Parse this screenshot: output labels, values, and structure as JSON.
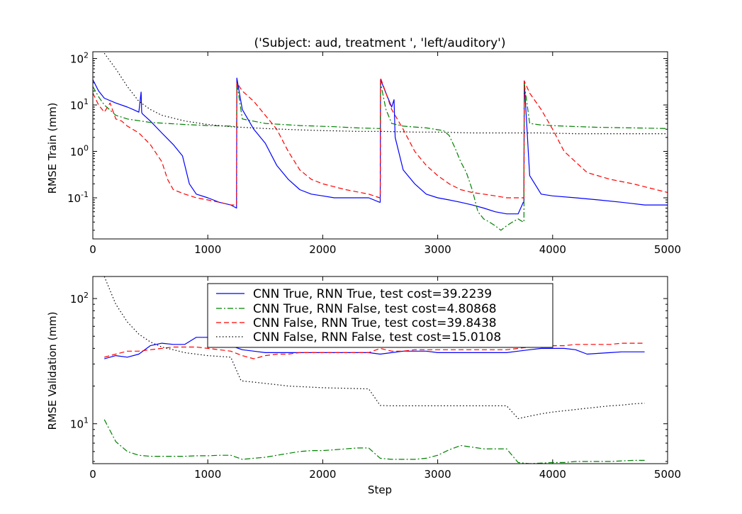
{
  "chart_data": [
    {
      "type": "line",
      "title": "('Subject: aud, treatment ', 'left/auditory')",
      "xlabel": "",
      "ylabel": "RMSE Train (mm)",
      "xlim": [
        0,
        5000
      ],
      "ylim": [
        0.013,
        140
      ],
      "yscale": "log",
      "xticks": [
        "0",
        "1000",
        "2000",
        "3000",
        "4000",
        "5000"
      ],
      "yticks": [
        {
          "value": 100,
          "base": "10",
          "exp": "2"
        },
        {
          "value": 10,
          "base": "10",
          "exp": "1"
        },
        {
          "value": 1,
          "base": "10",
          "exp": "0"
        },
        {
          "value": 0.1,
          "base": "10",
          "exp": "-1"
        }
      ],
      "grid": false,
      "series": [
        {
          "name": "CNN True, RNN True",
          "color": "#0000ff",
          "style": "solid",
          "x": [
            0,
            50,
            100,
            200,
            300,
            350,
            400,
            420,
            425,
            430,
            500,
            600,
            700,
            780,
            840,
            900,
            1000,
            1100,
            1200,
            1250,
            1253,
            1300,
            1400,
            1500,
            1600,
            1700,
            1800,
            1900,
            2000,
            2100,
            2200,
            2300,
            2400,
            2495,
            2500,
            2503,
            2550,
            2600,
            2620,
            2630,
            2700,
            2800,
            2900,
            3000,
            3100,
            3200,
            3300,
            3400,
            3500,
            3600,
            3700,
            3745,
            3750,
            3753,
            3800,
            3900,
            4000,
            4200,
            4400,
            4600,
            4800,
            5000
          ],
          "y": [
            35,
            20,
            14,
            11,
            9,
            8,
            7,
            19,
            7,
            6.5,
            4.5,
            2.5,
            1.4,
            0.8,
            0.2,
            0.12,
            0.1,
            0.08,
            0.07,
            0.06,
            38,
            8,
            3,
            1.5,
            0.5,
            0.25,
            0.15,
            0.12,
            0.11,
            0.1,
            0.1,
            0.1,
            0.1,
            0.08,
            0.08,
            35,
            18,
            9,
            13,
            2,
            0.4,
            0.2,
            0.12,
            0.1,
            0.09,
            0.08,
            0.07,
            0.06,
            0.05,
            0.045,
            0.045,
            0.08,
            0.08,
            33,
            0.3,
            0.12,
            0.11,
            0.1,
            0.09,
            0.08,
            0.07,
            0.07
          ]
        },
        {
          "name": "CNN True, RNN False",
          "color": "#008000",
          "style": "dashdot",
          "x": [
            0,
            50,
            100,
            200,
            300,
            500,
            800,
            1000,
            1200,
            1245,
            1250,
            1253,
            1300,
            1500,
            1800,
            2100,
            2300,
            2495,
            2500,
            2503,
            2550,
            2600,
            2700,
            2900,
            3050,
            3100,
            3150,
            3200,
            3250,
            3300,
            3350,
            3400,
            3450,
            3500,
            3550,
            3600,
            3650,
            3700,
            3745,
            3750,
            3753,
            3800,
            3900,
            4100,
            4400,
            4700,
            5000
          ],
          "y": [
            25,
            15,
            10,
            6,
            5,
            4.2,
            3.8,
            3.6,
            3.5,
            3.4,
            3.4,
            30,
            5,
            4,
            3.6,
            3.4,
            3.2,
            3.1,
            3.1,
            30,
            8,
            4,
            3.5,
            3.2,
            2.8,
            2.2,
            1.2,
            0.6,
            0.35,
            0.15,
            0.05,
            0.035,
            0.03,
            0.025,
            0.02,
            0.025,
            0.03,
            0.035,
            0.03,
            0.03,
            30,
            4,
            3.7,
            3.5,
            3.3,
            3.2,
            3.1
          ]
        },
        {
          "name": "CNN False, RNN True",
          "color": "#ff0000",
          "style": "dashed",
          "x": [
            0,
            50,
            100,
            150,
            200,
            250,
            300,
            400,
            500,
            600,
            650,
            700,
            800,
            900,
            1000,
            1100,
            1200,
            1245,
            1250,
            1253,
            1300,
            1400,
            1500,
            1600,
            1700,
            1800,
            1900,
            2000,
            2200,
            2400,
            2495,
            2500,
            2503,
            2550,
            2600,
            2700,
            2800,
            2900,
            3000,
            3100,
            3200,
            3300,
            3400,
            3500,
            3600,
            3700,
            3745,
            3750,
            3753,
            3800,
            3900,
            4000,
            4100,
            4300,
            4500,
            4700,
            4900,
            5000
          ],
          "y": [
            18,
            10,
            7,
            11,
            5,
            4.5,
            3.5,
            2.5,
            1.4,
            0.6,
            0.25,
            0.15,
            0.12,
            0.1,
            0.09,
            0.08,
            0.07,
            0.07,
            0.07,
            30,
            20,
            12,
            6,
            3,
            1,
            0.4,
            0.25,
            0.2,
            0.15,
            0.12,
            0.1,
            0.1,
            38,
            18,
            8,
            3,
            1,
            0.5,
            0.3,
            0.2,
            0.15,
            0.13,
            0.12,
            0.11,
            0.1,
            0.1,
            0.1,
            0.1,
            33,
            18,
            8,
            3,
            1,
            0.35,
            0.25,
            0.2,
            0.15,
            0.13
          ]
        },
        {
          "name": "CNN False, RNN False",
          "color": "#000000",
          "style": "dotted",
          "x": [
            100,
            200,
            300,
            400,
            500,
            600,
            800,
            1000,
            1200,
            1500,
            1800,
            2000,
            2300,
            2500,
            2800,
            3000,
            3300,
            3500,
            3700,
            3900,
            4200,
            4500,
            4800,
            5000
          ],
          "y": [
            130,
            60,
            25,
            12,
            8,
            6,
            4.5,
            3.8,
            3.4,
            3.1,
            2.9,
            2.8,
            2.7,
            2.7,
            2.6,
            2.6,
            2.5,
            2.5,
            2.5,
            2.5,
            2.4,
            2.4,
            2.4,
            2.4
          ]
        }
      ]
    },
    {
      "type": "line",
      "title": "",
      "xlabel": "Step",
      "ylabel": "RMSE Validation (mm)",
      "xlim": [
        0,
        5000
      ],
      "ylim": [
        4.8,
        150
      ],
      "yscale": "log",
      "xticks": [
        "0",
        "1000",
        "2000",
        "3000",
        "4000",
        "5000"
      ],
      "yticks": [
        {
          "value": 100,
          "base": "10",
          "exp": "2"
        },
        {
          "value": 10,
          "base": "10",
          "exp": "1"
        }
      ],
      "grid": false,
      "legend": {
        "position": "upper-center",
        "entries": [
          "CNN True, RNN True, test cost=39.2239",
          "CNN True, RNN False, test cost=4.80868",
          "CNN False, RNN True, test cost=39.8438",
          "CNN False, RNN False, test cost=15.0108"
        ]
      },
      "series": [
        {
          "name": "CNN True, RNN True",
          "color": "#0000ff",
          "style": "solid",
          "x": [
            100,
            200,
            300,
            400,
            500,
            600,
            700,
            800,
            900,
            1000,
            1100,
            1200,
            1300,
            1400,
            1500,
            1600,
            1700,
            1800,
            1900,
            2000,
            2100,
            2200,
            2300,
            2400,
            2500,
            2600,
            2700,
            2800,
            2900,
            3000,
            3100,
            3200,
            3300,
            3400,
            3500,
            3600,
            3700,
            3800,
            3900,
            4000,
            4100,
            4200,
            4300,
            4400,
            4500,
            4600,
            4700,
            4800
          ],
          "y": [
            33,
            35,
            34,
            36,
            42,
            44,
            43,
            43,
            49,
            49,
            45,
            42,
            39,
            38,
            37,
            37,
            37,
            37,
            37,
            37,
            37,
            37,
            37,
            37,
            36,
            37,
            38,
            38,
            38,
            37,
            37,
            37,
            37,
            37,
            37,
            37,
            38,
            39,
            40,
            40,
            40,
            39,
            36,
            36.5,
            37,
            37.5,
            37.5,
            37.5
          ]
        },
        {
          "name": "CNN True, RNN False",
          "color": "#008000",
          "style": "dashdot",
          "x": [
            100,
            200,
            300,
            400,
            500,
            600,
            700,
            800,
            900,
            1000,
            1100,
            1200,
            1300,
            1400,
            1500,
            1600,
            1700,
            1800,
            1900,
            2000,
            2100,
            2200,
            2300,
            2400,
            2500,
            2600,
            2700,
            2800,
            2900,
            3000,
            3100,
            3200,
            3300,
            3400,
            3500,
            3600,
            3700,
            3800,
            3900,
            4000,
            4100,
            4200,
            4300,
            4400,
            4500,
            4600,
            4700,
            4800
          ],
          "y": [
            10.8,
            7.2,
            6.0,
            5.6,
            5.5,
            5.5,
            5.5,
            5.5,
            5.55,
            5.55,
            5.6,
            5.6,
            5.2,
            5.3,
            5.4,
            5.6,
            5.8,
            6.0,
            6.1,
            6.1,
            6.2,
            6.3,
            6.4,
            6.4,
            5.3,
            5.2,
            5.2,
            5.2,
            5.3,
            5.6,
            6.2,
            6.7,
            6.5,
            6.3,
            6.3,
            6.3,
            4.9,
            4.8,
            4.85,
            4.9,
            4.9,
            5.0,
            5.0,
            5.0,
            5.0,
            5.05,
            5.1,
            5.1
          ]
        },
        {
          "name": "CNN False, RNN True",
          "color": "#ff0000",
          "style": "dashed",
          "x": [
            100,
            200,
            300,
            400,
            500,
            600,
            700,
            800,
            900,
            1000,
            1100,
            1200,
            1300,
            1400,
            1500,
            1600,
            1700,
            1800,
            1900,
            2000,
            2100,
            2200,
            2300,
            2400,
            2500,
            2600,
            2700,
            2800,
            2900,
            3000,
            3100,
            3200,
            3300,
            3400,
            3500,
            3600,
            3700,
            3800,
            3900,
            4000,
            4100,
            4200,
            4300,
            4400,
            4500,
            4600,
            4700,
            4800
          ],
          "y": [
            34,
            36,
            38,
            38,
            39,
            40,
            41,
            41,
            41,
            40,
            39,
            38,
            35,
            33,
            35,
            36,
            36,
            37,
            37,
            37,
            37,
            37,
            37,
            37,
            40,
            38,
            38,
            39,
            39,
            39,
            39,
            39,
            39,
            39,
            39,
            39,
            40,
            41,
            42,
            42,
            42,
            43,
            43,
            43,
            43,
            44,
            44,
            44
          ]
        },
        {
          "name": "CNN False, RNN False",
          "color": "#000000",
          "style": "dotted",
          "x": [
            100,
            200,
            300,
            400,
            500,
            600,
            700,
            800,
            900,
            1000,
            1100,
            1200,
            1290,
            1400,
            1500,
            1600,
            1700,
            1800,
            1900,
            2000,
            2100,
            2200,
            2300,
            2400,
            2500,
            2600,
            2700,
            2800,
            2900,
            3000,
            3100,
            3200,
            3300,
            3400,
            3500,
            3600,
            3700,
            3800,
            3900,
            4000,
            4100,
            4200,
            4300,
            4400,
            4500,
            4600,
            4700,
            4800
          ],
          "y": [
            150,
            90,
            65,
            52,
            45,
            41,
            39,
            37,
            36,
            35,
            34.5,
            34,
            22,
            21.5,
            21,
            20.5,
            20,
            19.8,
            19.6,
            19.4,
            19.3,
            19.2,
            19.1,
            19.0,
            14,
            13.9,
            13.9,
            13.9,
            13.9,
            13.9,
            13.9,
            13.9,
            13.9,
            13.9,
            13.9,
            13.9,
            11,
            11.5,
            12,
            12.4,
            12.7,
            13,
            13.3,
            13.6,
            13.9,
            14.1,
            14.4,
            14.6
          ]
        }
      ]
    }
  ]
}
